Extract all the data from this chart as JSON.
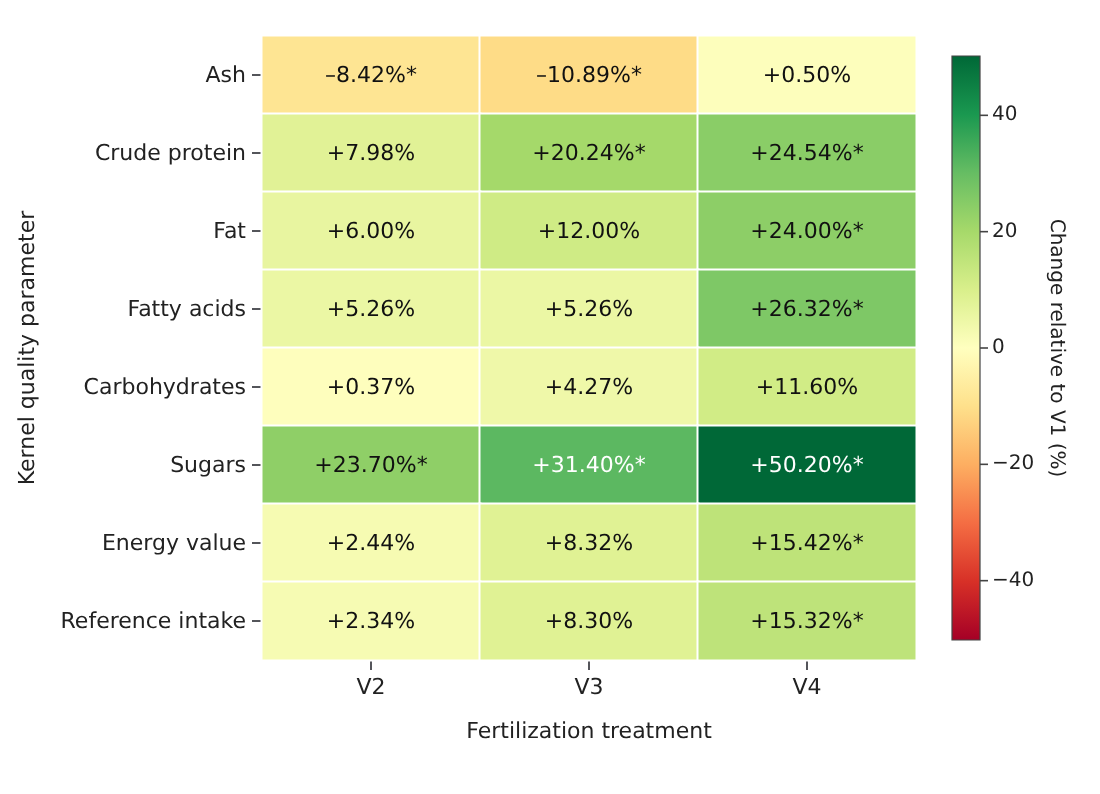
{
  "chart_data": {
    "type": "heatmap",
    "xlabel": "Fertilization treatment",
    "ylabel": "Kernel quality parameter",
    "clabel": "Change relative to V1 (%)",
    "categories": [
      "V2",
      "V3",
      "V4"
    ],
    "y_categories": [
      "Ash",
      "Crude protein",
      "Fat",
      "Fatty acids",
      "Carbohydrates",
      "Sugars",
      "Energy value",
      "Reference intake"
    ],
    "cells": [
      [
        -8.42,
        -10.89,
        0.5
      ],
      [
        7.98,
        20.24,
        24.54
      ],
      [
        6.0,
        12.0,
        24.0
      ],
      [
        5.26,
        5.26,
        26.32
      ],
      [
        0.37,
        4.27,
        11.6
      ],
      [
        23.7,
        31.4,
        50.2
      ],
      [
        2.44,
        8.32,
        15.42
      ],
      [
        2.34,
        8.3,
        15.32
      ]
    ],
    "cell_labels": [
      [
        "–8.42%*",
        "–10.89%*",
        "+0.50%"
      ],
      [
        "+7.98%",
        "+20.24%*",
        "+24.54%*"
      ],
      [
        "+6.00%",
        "+12.00%",
        "+24.00%*"
      ],
      [
        "+5.26%",
        "+5.26%",
        "+26.32%*"
      ],
      [
        "+0.37%",
        "+4.27%",
        "+11.60%"
      ],
      [
        "+23.70%*",
        "+31.40%*",
        "+50.20%*"
      ],
      [
        "+2.44%",
        "+8.32%",
        "+15.42%*"
      ],
      [
        "+2.34%",
        "+8.30%",
        "+15.32%*"
      ]
    ],
    "clim": [
      -50.2,
      50.2
    ],
    "cticks": [
      -40,
      -20,
      0,
      20,
      40
    ]
  }
}
